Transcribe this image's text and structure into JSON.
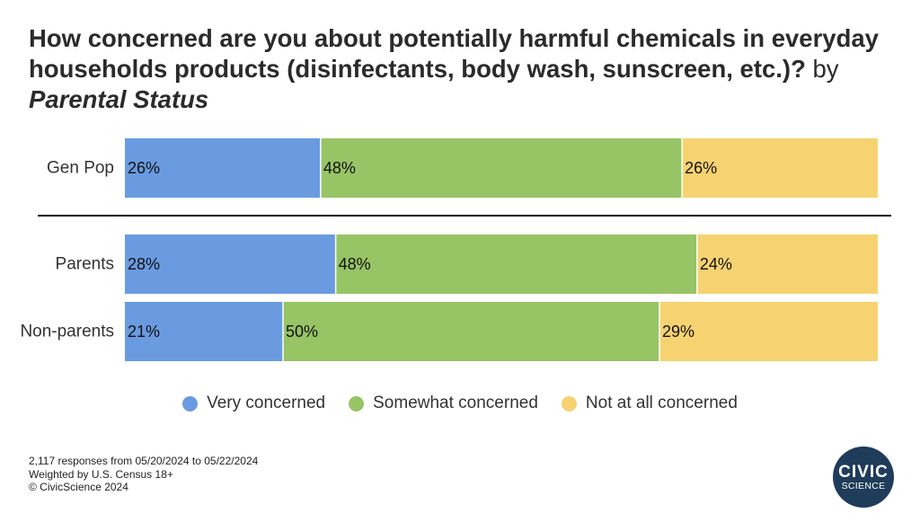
{
  "title": {
    "main": "How concerned are you about potentially harmful chemicals in everyday households products (disinfectants, body wash, sunscreen, etc.)?",
    "by": "by",
    "subtitle": "Parental Status"
  },
  "colors": {
    "very_concerned": "#6a9be0",
    "somewhat_concerned": "#97c465",
    "not_at_all_concerned": "#f6d271",
    "divider": "#111111",
    "logo": "#1f3c5a"
  },
  "chart_data": {
    "type": "bar",
    "orientation": "horizontal",
    "stacked": true,
    "normalized": true,
    "categories": [
      "Gen Pop",
      "Parents",
      "Non-parents"
    ],
    "series": [
      {
        "name": "Very concerned",
        "values": [
          26,
          28,
          21
        ],
        "labels": [
          "26%",
          "28%",
          "21%"
        ]
      },
      {
        "name": "Somewhat concerned",
        "values": [
          48,
          48,
          50
        ],
        "labels": [
          "48%",
          "48%",
          "50%"
        ]
      },
      {
        "name": "Not at all concerned",
        "values": [
          26,
          24,
          29
        ],
        "labels": [
          "26%",
          "24%",
          "29%"
        ]
      }
    ],
    "xlim": [
      0,
      100
    ],
    "grid": false,
    "legend_position": "bottom",
    "divider_after": "Gen Pop"
  },
  "legend": {
    "items": [
      {
        "label": "Very concerned"
      },
      {
        "label": "Somewhat concerned"
      },
      {
        "label": "Not at all concerned"
      }
    ]
  },
  "footer": {
    "line1": "2,117 responses from 05/20/2024 to 05/22/2024",
    "line2": "Weighted by U.S. Census 18+",
    "line3": "© CivicScience 2024"
  },
  "logo": {
    "line1": "CIVIC",
    "line2": "SCIENCE"
  }
}
